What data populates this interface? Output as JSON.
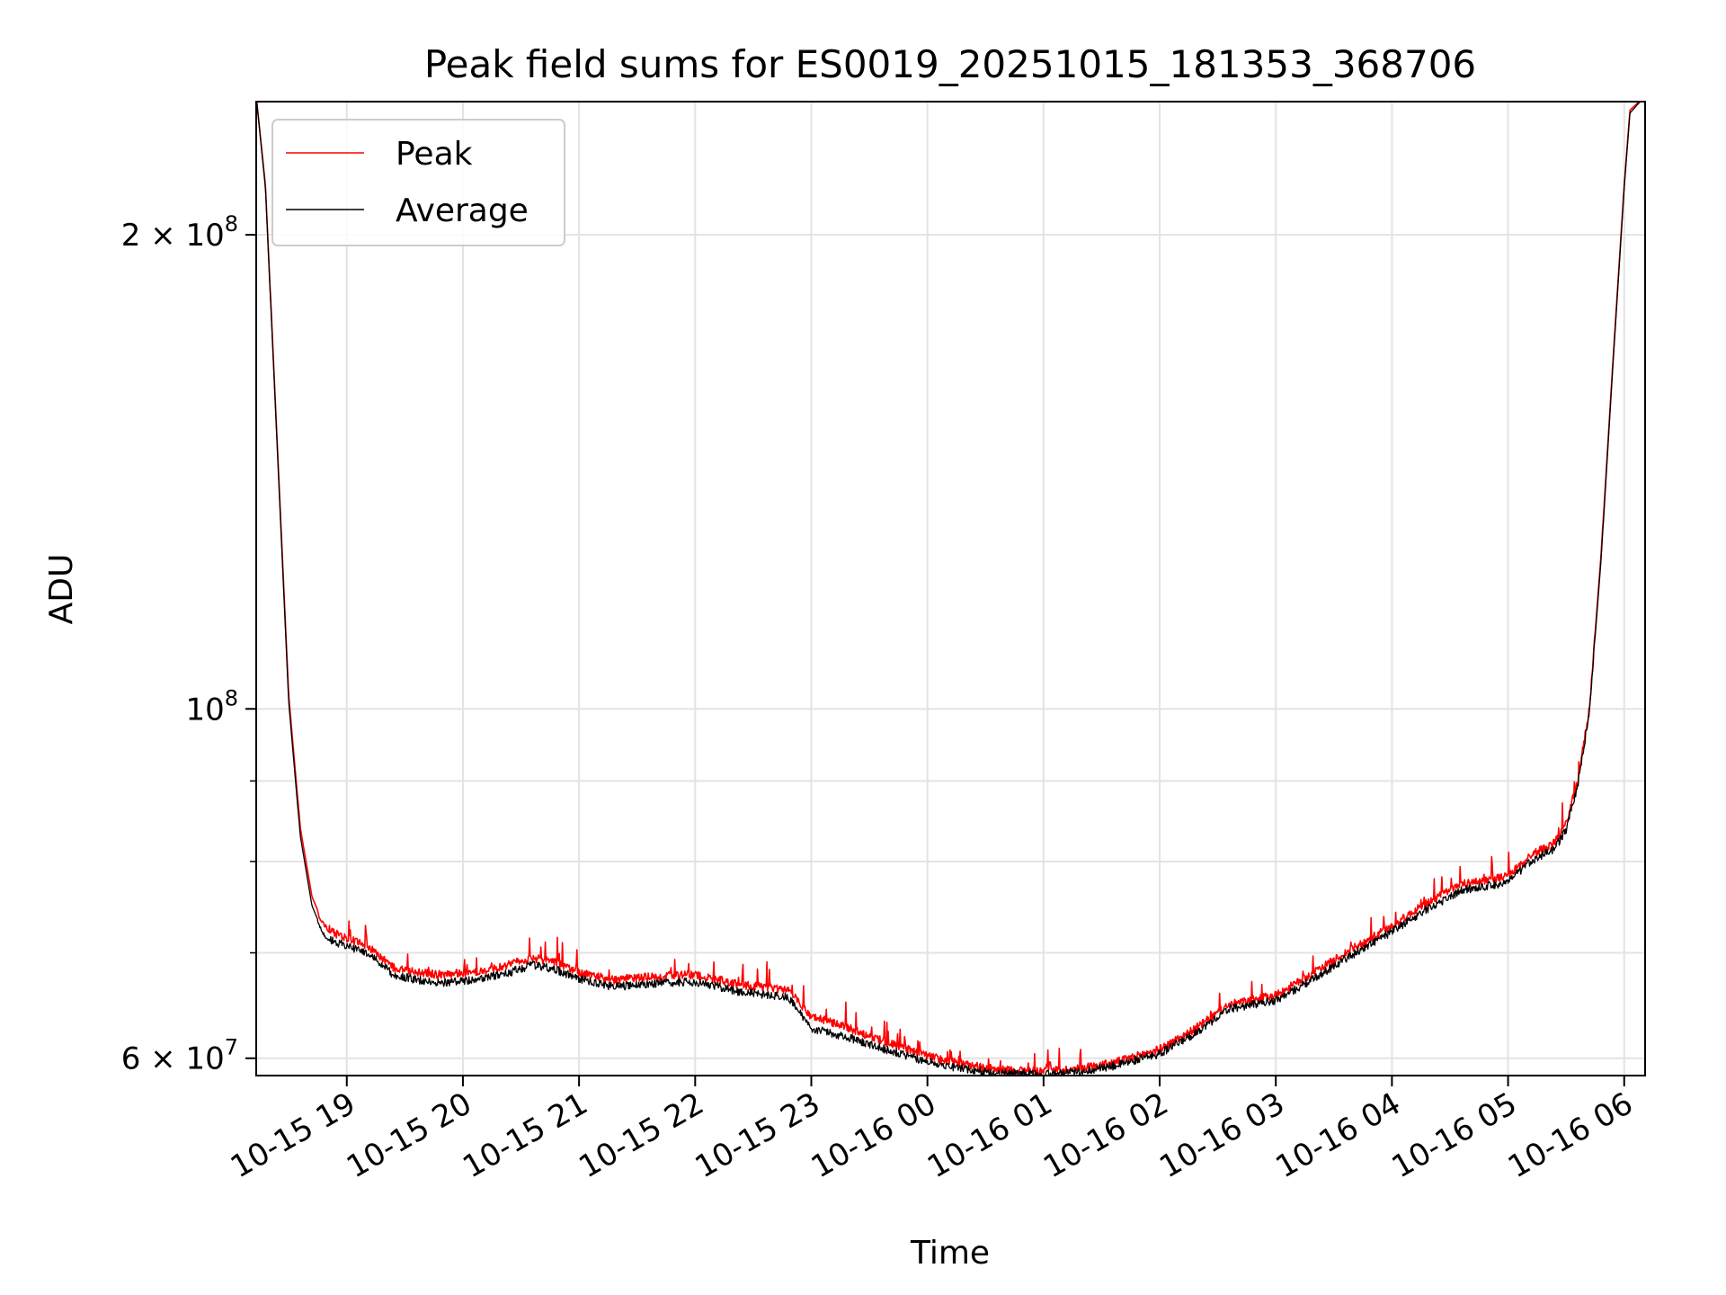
{
  "chart_data": {
    "type": "line",
    "title": "Peak field sums for ES0019_20251015_181353_368706",
    "xlabel": "Time",
    "ylabel": "ADU",
    "yscale": "log",
    "xlim_hours": [
      18.22,
      30.18
    ],
    "ylim": [
      58500000,
      243000000
    ],
    "x_tick_labels": [
      "10-15 19",
      "10-15 20",
      "10-15 21",
      "10-15 22",
      "10-15 23",
      "10-16 00",
      "10-16 01",
      "10-16 02",
      "10-16 03",
      "10-16 04",
      "10-16 05",
      "10-16 06"
    ],
    "x_tick_hours": [
      19,
      20,
      21,
      22,
      23,
      24,
      25,
      26,
      27,
      28,
      29,
      30
    ],
    "y_major_ticks": [
      {
        "value": 60000000,
        "base": "6 × 10",
        "exp": "7"
      },
      {
        "value": 100000000,
        "base": "10",
        "exp": "8"
      },
      {
        "value": 200000000,
        "base": "2 × 10",
        "exp": "8"
      }
    ],
    "y_minor_ticks": [
      70000000,
      80000000,
      90000000
    ],
    "grid": true,
    "legend_position": "upper-left",
    "series": [
      {
        "name": "Peak",
        "color": "#ff0000",
        "hours": [
          18.22,
          18.3,
          18.4,
          18.5,
          18.6,
          18.7,
          18.8,
          18.9,
          19.0,
          19.2,
          19.4,
          19.6,
          19.8,
          20.0,
          20.2,
          20.4,
          20.6,
          20.8,
          21.0,
          21.3,
          21.6,
          22.0,
          22.4,
          22.8,
          23.0,
          23.3,
          23.6,
          24.0,
          24.3,
          24.6,
          25.0,
          25.3,
          25.6,
          26.0,
          26.3,
          26.6,
          27.0,
          27.3,
          27.6,
          28.0,
          28.3,
          28.6,
          29.0,
          29.2,
          29.4,
          29.5,
          29.6,
          29.7,
          29.8,
          29.9,
          30.0,
          30.05,
          30.18
        ],
        "values": [
          245000000,
          215000000,
          148000000,
          102000000,
          84000000,
          76000000,
          73000000,
          72000000,
          71500000,
          70500000,
          68500000,
          68000000,
          67800000,
          68000000,
          68200000,
          68800000,
          69500000,
          69000000,
          68000000,
          67300000,
          67600000,
          67800000,
          66800000,
          66300000,
          63800000,
          62800000,
          61600000,
          60200000,
          59500000,
          59000000,
          58900000,
          59100000,
          59600000,
          60800000,
          62600000,
          64900000,
          65800000,
          67800000,
          70000000,
          72800000,
          75300000,
          77400000,
          78300000,
          80800000,
          82200000,
          84500000,
          90000000,
          100000000,
          125000000,
          165000000,
          215000000,
          240000000,
          245000000
        ]
      },
      {
        "name": "Average",
        "color": "#000000",
        "hours": [
          18.22,
          18.3,
          18.4,
          18.5,
          18.6,
          18.7,
          18.8,
          18.9,
          19.0,
          19.2,
          19.4,
          19.6,
          19.8,
          20.0,
          20.2,
          20.4,
          20.6,
          20.8,
          21.0,
          21.3,
          21.6,
          22.0,
          22.4,
          22.8,
          23.0,
          23.3,
          23.6,
          24.0,
          24.3,
          24.6,
          25.0,
          25.3,
          25.6,
          26.0,
          26.3,
          26.6,
          27.0,
          27.3,
          27.6,
          28.0,
          28.3,
          28.6,
          29.0,
          29.2,
          29.4,
          29.5,
          29.6,
          29.7,
          29.8,
          29.9,
          30.0,
          30.05,
          30.18
        ],
        "values": [
          245000000,
          214000000,
          147000000,
          101000000,
          83000000,
          75000000,
          72000000,
          71000000,
          70800000,
          69800000,
          67800000,
          67300000,
          67000000,
          67200000,
          67500000,
          68000000,
          68800000,
          68300000,
          67400000,
          66600000,
          66900000,
          67100000,
          66100000,
          65600000,
          62700000,
          61900000,
          60900000,
          59700000,
          59100000,
          58700000,
          58600000,
          58800000,
          59300000,
          60400000,
          62200000,
          64500000,
          65300000,
          67200000,
          69400000,
          72200000,
          74600000,
          76700000,
          77600000,
          80100000,
          81500000,
          83800000,
          89500000,
          99500000,
          124000000,
          164000000,
          214000000,
          239000000,
          245000000
        ]
      }
    ]
  }
}
